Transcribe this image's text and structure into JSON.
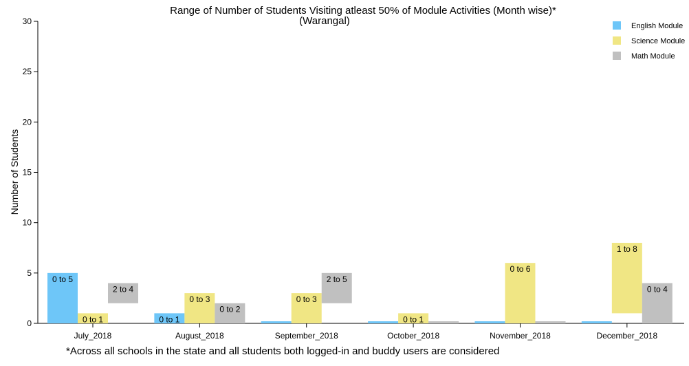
{
  "chart_data": {
    "type": "bar",
    "title": "Range of Number of Students Visiting atleast 50% of Module Activities (Month wise)*",
    "subtitle": "(Warangal)",
    "xlabel": "",
    "ylabel": "Number of Students",
    "ylim": [
      0,
      30
    ],
    "yticks": [
      "0",
      "5",
      "10",
      "15",
      "20",
      "25",
      "30"
    ],
    "grid": false,
    "legend_position": "top-right",
    "footnote": "*Across all schools in the state and all students both logged-in and buddy users are considered",
    "categories": [
      "July_2018",
      "August_2018",
      "September_2018",
      "October_2018",
      "November_2018",
      "December_2018"
    ],
    "series": [
      {
        "name": "English Module",
        "color": "#6ec6f8",
        "ranges": [
          [
            0,
            5
          ],
          [
            0,
            1
          ],
          [
            0,
            0
          ],
          [
            0,
            0
          ],
          [
            0,
            0
          ],
          [
            0,
            0
          ]
        ],
        "labels": [
          "0 to 5",
          "0 to 1",
          "",
          "",
          "",
          ""
        ]
      },
      {
        "name": "Science Module",
        "color": "#f0e684",
        "ranges": [
          [
            0,
            1
          ],
          [
            0,
            3
          ],
          [
            0,
            3
          ],
          [
            0,
            1
          ],
          [
            0,
            6
          ],
          [
            1,
            8
          ]
        ],
        "labels": [
          "0 to 1",
          "0 to 3",
          "0 to 3",
          "0 to 1",
          "0 to 6",
          "1 to 8"
        ]
      },
      {
        "name": "Math Module",
        "color": "#c0c0c0",
        "ranges": [
          [
            2,
            4
          ],
          [
            0,
            2
          ],
          [
            2,
            5
          ],
          [
            0,
            0
          ],
          [
            0,
            0
          ],
          [
            0,
            4
          ]
        ],
        "labels": [
          "2 to 4",
          "0 to 2",
          "2 to 5",
          "",
          "",
          "0 to 4"
        ]
      }
    ]
  }
}
